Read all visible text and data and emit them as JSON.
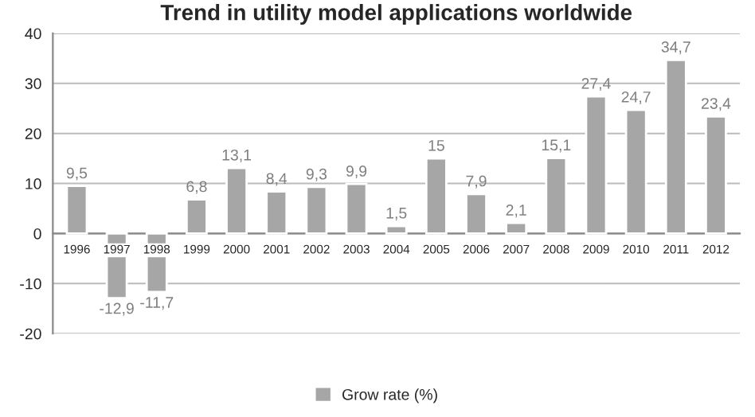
{
  "chart_data": {
    "type": "bar",
    "title": "Trend in utility model applications worldwide",
    "categories": [
      "1996",
      "1997",
      "1998",
      "1999",
      "2000",
      "2001",
      "2002",
      "2003",
      "2004",
      "2005",
      "2006",
      "2007",
      "2008",
      "2009",
      "2010",
      "2011",
      "2012"
    ],
    "series": [
      {
        "name": "Grow rate (%)",
        "color": "#a6a6a6",
        "values": [
          9.5,
          -12.9,
          -11.7,
          6.8,
          13.1,
          8.4,
          9.3,
          9.9,
          1.5,
          15,
          7.9,
          2.1,
          15.1,
          27.4,
          24.7,
          34.7,
          23.4
        ],
        "value_labels": [
          "9,5",
          "-12,9",
          "-11,7",
          "6,8",
          "13,1",
          "8,4",
          "9,3",
          "9,9",
          "1,5",
          "15",
          "7,9",
          "2,1",
          "15,1",
          "27,4",
          "24,7",
          "34,7",
          "23,4"
        ]
      }
    ],
    "ylim": [
      -20,
      40
    ],
    "yticks": [
      -20,
      -10,
      0,
      10,
      20,
      30,
      40
    ],
    "grid": "y",
    "legend": "bottom"
  }
}
